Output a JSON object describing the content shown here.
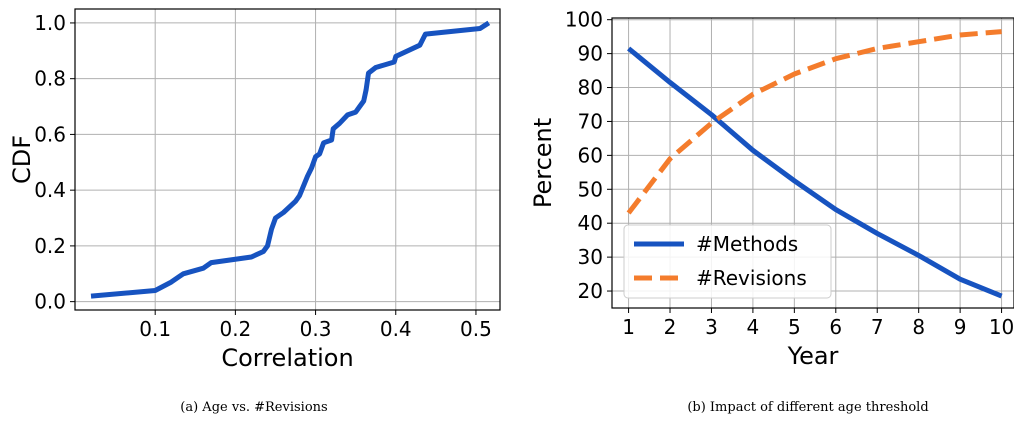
{
  "chart_data": [
    {
      "type": "line",
      "xlabel": "Correlation",
      "ylabel": "CDF",
      "caption": "(a)  Age vs. #Revisions",
      "xlim": [
        0.0,
        0.53
      ],
      "ylim": [
        -0.03,
        1.05
      ],
      "xticks": [
        0.1,
        0.2,
        0.3,
        0.4,
        0.5
      ],
      "xtick_labels": [
        "0.1",
        "0.2",
        "0.3",
        "0.4",
        "0.5"
      ],
      "yticks": [
        0.0,
        0.2,
        0.4,
        0.6,
        0.8,
        1.0
      ],
      "ytick_labels": [
        "0.0",
        "0.2",
        "0.4",
        "0.6",
        "0.8",
        "1.0"
      ],
      "grid": true,
      "series": [
        {
          "color": "#1753c0",
          "style": "solid",
          "x": [
            0.02,
            0.1,
            0.12,
            0.13,
            0.135,
            0.16,
            0.17,
            0.22,
            0.235,
            0.24,
            0.245,
            0.25,
            0.26,
            0.275,
            0.28,
            0.29,
            0.295,
            0.3,
            0.305,
            0.31,
            0.32,
            0.322,
            0.33,
            0.34,
            0.35,
            0.355,
            0.36,
            0.363,
            0.366,
            0.375,
            0.398,
            0.4,
            0.43,
            0.437,
            0.505,
            0.516
          ],
          "y": [
            0.02,
            0.04,
            0.07,
            0.09,
            0.1,
            0.12,
            0.14,
            0.16,
            0.18,
            0.2,
            0.26,
            0.3,
            0.32,
            0.36,
            0.38,
            0.45,
            0.48,
            0.52,
            0.53,
            0.57,
            0.58,
            0.62,
            0.64,
            0.67,
            0.68,
            0.7,
            0.72,
            0.76,
            0.82,
            0.84,
            0.86,
            0.88,
            0.92,
            0.96,
            0.98,
            1.0
          ]
        }
      ]
    },
    {
      "type": "line",
      "xlabel": "Year",
      "ylabel": "Percent",
      "caption": "(b)  Impact of different age threshold",
      "xlim": [
        0.6,
        10.3
      ],
      "ylim": [
        15,
        100.5
      ],
      "xticks": [
        1,
        2,
        3,
        4,
        5,
        6,
        7,
        8,
        9,
        10
      ],
      "xtick_labels": [
        "1",
        "2",
        "3",
        "4",
        "5",
        "6",
        "7",
        "8",
        "9",
        "10"
      ],
      "yticks": [
        20,
        30,
        40,
        50,
        60,
        70,
        80,
        90,
        100
      ],
      "ytick_labels": [
        "20",
        "30",
        "40",
        "50",
        "60",
        "70",
        "80",
        "90",
        "100"
      ],
      "grid": true,
      "legend_position": "lower-left",
      "x": [
        1,
        2,
        3,
        4,
        5,
        6,
        7,
        8,
        9,
        10
      ],
      "series": [
        {
          "name": "#Methods",
          "color": "#1753c0",
          "style": "solid",
          "values": [
            91.5,
            81.5,
            72,
            61.5,
            52.5,
            44,
            37,
            30.5,
            23.5,
            18.5
          ]
        },
        {
          "name": "#Revisions",
          "color": "#f47c2c",
          "style": "dashed",
          "values": [
            43,
            59,
            69.5,
            78,
            84,
            88.5,
            91.5,
            93.5,
            95.5,
            96.5
          ]
        }
      ]
    }
  ]
}
